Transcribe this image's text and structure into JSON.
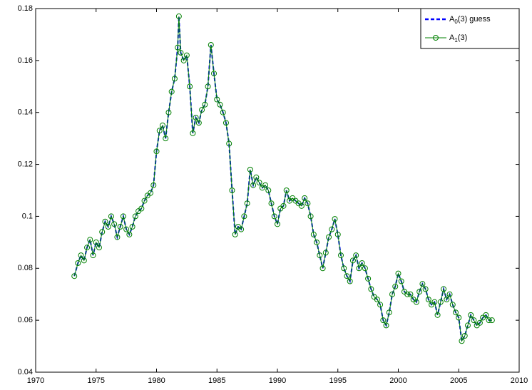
{
  "chart_data": {
    "type": "line",
    "x": [
      1973.2,
      1973.5,
      1973.75,
      1974,
      1974.25,
      1974.5,
      1974.75,
      1975,
      1975.25,
      1975.5,
      1975.75,
      1976,
      1976.25,
      1976.5,
      1976.75,
      1977,
      1977.25,
      1977.5,
      1977.75,
      1978,
      1978.25,
      1978.5,
      1978.75,
      1979,
      1979.25,
      1979.5,
      1979.75,
      1980,
      1980.25,
      1980.5,
      1980.75,
      1981,
      1981.25,
      1981.5,
      1981.75,
      1981.85,
      1982,
      1982.25,
      1982.5,
      1982.75,
      1983,
      1983.25,
      1983.5,
      1983.75,
      1984,
      1984.25,
      1984.5,
      1984.75,
      1985,
      1985.25,
      1985.5,
      1985.75,
      1986,
      1986.25,
      1986.5,
      1986.75,
      1987,
      1987.25,
      1987.5,
      1987.75,
      1988,
      1988.25,
      1988.5,
      1988.75,
      1989,
      1989.25,
      1989.5,
      1989.75,
      1990,
      1990.25,
      1990.5,
      1990.75,
      1991,
      1991.25,
      1991.5,
      1991.75,
      1992,
      1992.25,
      1992.5,
      1992.75,
      1993,
      1993.25,
      1993.5,
      1993.75,
      1994,
      1994.25,
      1994.5,
      1994.75,
      1995,
      1995.25,
      1995.5,
      1995.75,
      1996,
      1996.25,
      1996.5,
      1996.75,
      1997,
      1997.25,
      1997.5,
      1997.75,
      1998,
      1998.25,
      1998.5,
      1998.75,
      1999,
      1999.25,
      1999.5,
      1999.75,
      2000,
      2000.25,
      2000.5,
      2000.75,
      2001,
      2001.25,
      2001.5,
      2001.75,
      2002,
      2002.25,
      2002.5,
      2002.75,
      2003,
      2003.25,
      2003.5,
      2003.75,
      2004,
      2004.25,
      2004.5,
      2004.75,
      2005,
      2005.25,
      2005.5,
      2005.75,
      2006,
      2006.25,
      2006.5,
      2006.75,
      2007,
      2007.25,
      2007.5,
      2007.75
    ],
    "series": [
      {
        "name": "A0(3) guess",
        "color": "#0000ff",
        "style": "dashed",
        "values": [
          0.077,
          0.082,
          0.085,
          0.083,
          0.088,
          0.091,
          0.085,
          0.09,
          0.088,
          0.094,
          0.098,
          0.096,
          0.1,
          0.097,
          0.092,
          0.096,
          0.1,
          0.095,
          0.093,
          0.096,
          0.1,
          0.102,
          0.103,
          0.106,
          0.108,
          0.109,
          0.112,
          0.125,
          0.133,
          0.135,
          0.13,
          0.14,
          0.148,
          0.153,
          0.165,
          0.177,
          0.163,
          0.16,
          0.162,
          0.15,
          0.132,
          0.138,
          0.136,
          0.141,
          0.143,
          0.15,
          0.166,
          0.155,
          0.145,
          0.143,
          0.14,
          0.136,
          0.128,
          0.11,
          0.093,
          0.096,
          0.095,
          0.1,
          0.105,
          0.118,
          0.112,
          0.115,
          0.113,
          0.111,
          0.112,
          0.11,
          0.105,
          0.1,
          0.097,
          0.103,
          0.104,
          0.11,
          0.106,
          0.107,
          0.106,
          0.105,
          0.104,
          0.107,
          0.105,
          0.1,
          0.093,
          0.09,
          0.085,
          0.08,
          0.086,
          0.092,
          0.095,
          0.099,
          0.093,
          0.085,
          0.08,
          0.077,
          0.075,
          0.083,
          0.085,
          0.08,
          0.082,
          0.08,
          0.076,
          0.072,
          0.069,
          0.068,
          0.066,
          0.06,
          0.058,
          0.063,
          0.07,
          0.073,
          0.078,
          0.075,
          0.071,
          0.07,
          0.07,
          0.068,
          0.067,
          0.071,
          0.074,
          0.072,
          0.068,
          0.066,
          0.067,
          0.062,
          0.067,
          0.072,
          0.068,
          0.07,
          0.066,
          0.063,
          0.061,
          0.052,
          0.054,
          0.058,
          0.062,
          0.06,
          0.058,
          0.059,
          0.061,
          0.062,
          0.06,
          0.06
        ]
      },
      {
        "name": "A1(3)",
        "color": "#008000",
        "style": "solid-circle",
        "values": [
          0.077,
          0.082,
          0.085,
          0.083,
          0.088,
          0.091,
          0.085,
          0.09,
          0.088,
          0.094,
          0.098,
          0.096,
          0.1,
          0.097,
          0.092,
          0.096,
          0.1,
          0.095,
          0.093,
          0.096,
          0.1,
          0.102,
          0.103,
          0.106,
          0.108,
          0.109,
          0.112,
          0.125,
          0.133,
          0.135,
          0.13,
          0.14,
          0.148,
          0.153,
          0.165,
          0.177,
          0.163,
          0.16,
          0.162,
          0.15,
          0.132,
          0.138,
          0.136,
          0.141,
          0.143,
          0.15,
          0.166,
          0.155,
          0.145,
          0.143,
          0.14,
          0.136,
          0.128,
          0.11,
          0.093,
          0.096,
          0.095,
          0.1,
          0.105,
          0.118,
          0.112,
          0.115,
          0.113,
          0.111,
          0.112,
          0.11,
          0.105,
          0.1,
          0.097,
          0.103,
          0.104,
          0.11,
          0.106,
          0.107,
          0.106,
          0.105,
          0.104,
          0.107,
          0.105,
          0.1,
          0.093,
          0.09,
          0.085,
          0.08,
          0.086,
          0.092,
          0.095,
          0.099,
          0.093,
          0.085,
          0.08,
          0.077,
          0.075,
          0.083,
          0.085,
          0.08,
          0.082,
          0.08,
          0.076,
          0.072,
          0.069,
          0.068,
          0.066,
          0.06,
          0.058,
          0.063,
          0.07,
          0.073,
          0.078,
          0.075,
          0.071,
          0.07,
          0.07,
          0.068,
          0.067,
          0.071,
          0.074,
          0.072,
          0.068,
          0.066,
          0.067,
          0.062,
          0.067,
          0.072,
          0.068,
          0.07,
          0.066,
          0.063,
          0.061,
          0.052,
          0.054,
          0.058,
          0.062,
          0.06,
          0.058,
          0.059,
          0.061,
          0.062,
          0.06,
          0.06
        ]
      }
    ],
    "xlim": [
      1970,
      2010
    ],
    "xticks": [
      1970,
      1975,
      1980,
      1985,
      1990,
      1995,
      2000,
      2005,
      2010
    ],
    "ylim": [
      0.04,
      0.18
    ],
    "yticks": [
      0.04,
      0.06,
      0.08,
      0.1,
      0.12,
      0.14,
      0.16,
      0.18
    ],
    "legend": "upper right"
  }
}
